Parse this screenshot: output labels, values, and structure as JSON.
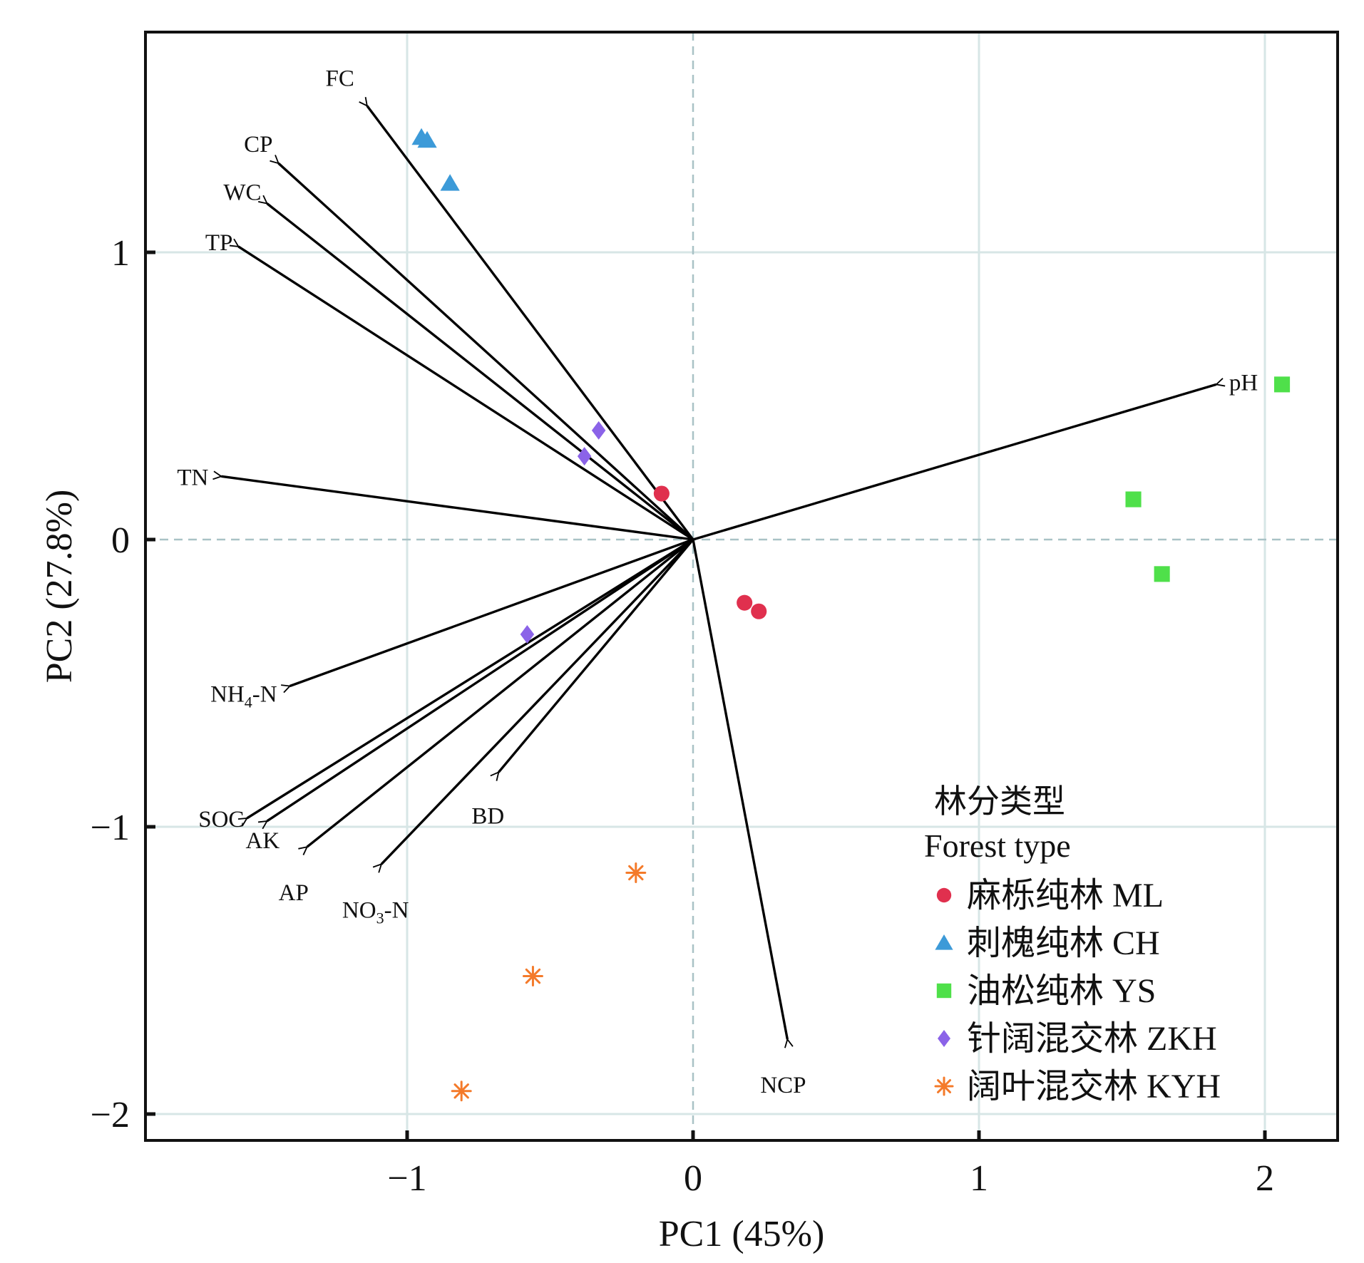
{
  "chart_data": {
    "type": "scatter",
    "subtype": "pca-biplot",
    "xlabel": "PC1 (45%)",
    "ylabel": "PC2 (27.8%)",
    "xlim": [
      -1.92,
      2.25
    ],
    "ylim": [
      -2.08,
      1.77
    ],
    "x_ticks": [
      -1,
      0,
      1,
      2
    ],
    "x_tick_labels": [
      "−1",
      "0",
      "1",
      "2"
    ],
    "y_ticks": [
      -2,
      -1,
      0,
      1
    ],
    "y_tick_labels": [
      "−2",
      "−1",
      "0",
      "1"
    ],
    "grid": true,
    "zero_lines": "dashed",
    "legend_placement": "bottom-right",
    "legend_title_cn": "林分类型",
    "legend_title_en": "Forest type",
    "loadings": [
      {
        "name": "FC",
        "display": "FC",
        "sub": "",
        "x": -1.14,
        "y": 1.51
      },
      {
        "name": "CP",
        "display": "CP",
        "sub": "",
        "x": -1.45,
        "y": 1.31
      },
      {
        "name": "WC",
        "display": "WC",
        "sub": "",
        "x": -1.49,
        "y": 1.17
      },
      {
        "name": "TP",
        "display": "TP",
        "sub": "",
        "x": -1.59,
        "y": 1.02
      },
      {
        "name": "TN",
        "display": "TN",
        "sub": "",
        "x": -1.65,
        "y": 0.22
      },
      {
        "name": "NH4-N",
        "display": "NH",
        "sub": "4",
        "after": "-N",
        "x": -1.41,
        "y": -0.51
      },
      {
        "name": "SOC",
        "display": "SOC",
        "sub": "",
        "x": -1.56,
        "y": -0.97
      },
      {
        "name": "AK",
        "display": "AK",
        "sub": "",
        "x": -1.49,
        "y": -0.98
      },
      {
        "name": "AP",
        "display": "AP",
        "sub": "",
        "x": -1.35,
        "y": -1.07
      },
      {
        "name": "NO3-N",
        "display": "NO",
        "sub": "3",
        "after": "-N",
        "x": -1.09,
        "y": -1.13
      },
      {
        "name": "BD",
        "display": "BD",
        "sub": "",
        "x": -0.68,
        "y": -0.81
      },
      {
        "name": "NCP",
        "display": "NCP",
        "sub": "",
        "x": 0.33,
        "y": -1.74
      },
      {
        "name": "pH",
        "display": "pH",
        "sub": "",
        "x": 1.83,
        "y": 0.54
      }
    ],
    "series": [
      {
        "name": "麻栎纯林 ML",
        "code": "ML",
        "marker": "circle",
        "color": "#e0304e",
        "points": [
          [
            -0.11,
            0.16
          ],
          [
            0.18,
            -0.22
          ],
          [
            0.23,
            -0.25
          ]
        ]
      },
      {
        "name": "刺槐纯林 CH",
        "code": "CH",
        "marker": "triangle",
        "color": "#3c9ad8",
        "points": [
          [
            -0.95,
            1.4
          ],
          [
            -0.93,
            1.39
          ],
          [
            -0.85,
            1.24
          ]
        ]
      },
      {
        "name": "油松纯林 YS",
        "code": "YS",
        "marker": "square",
        "color": "#4fe04a",
        "points": [
          [
            2.06,
            0.54
          ],
          [
            1.54,
            0.14
          ],
          [
            1.64,
            -0.12
          ]
        ]
      },
      {
        "name": "针阔混交林 ZKH",
        "code": "ZKH",
        "marker": "diamond",
        "color": "#8b63e8",
        "points": [
          [
            -0.33,
            0.38
          ],
          [
            -0.38,
            0.29
          ],
          [
            -0.58,
            -0.33
          ]
        ]
      },
      {
        "name": "阔叶混交林 KYH",
        "code": "KYH",
        "marker": "asterisk",
        "color": "#f47a2a",
        "points": [
          [
            -0.2,
            -1.16
          ],
          [
            -0.56,
            -1.52
          ],
          [
            -0.81,
            -1.92
          ]
        ]
      }
    ]
  }
}
